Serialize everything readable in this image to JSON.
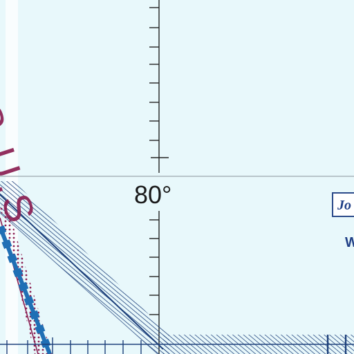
{
  "map": {
    "background_color": "#e8f8fb",
    "graticule_longitude_label": "80°",
    "boundary_text": "IIS U.S",
    "boxed_label": "Jo",
    "partial_label": "W",
    "colors": {
      "boundary_text": "#8b1f52",
      "hatched_band": "#1c3f7a",
      "thick_boundary": "#1f6fb5",
      "magenta_line": "#8b1f52",
      "label_blue": "#1f3f86",
      "graticule": "#222222"
    }
  }
}
